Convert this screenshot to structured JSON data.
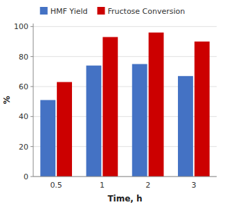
{
  "chart_data": {
    "type": "bar",
    "x_label": "Time, h",
    "y_label": "%",
    "categories": [
      "0.5",
      "1",
      "2",
      "3"
    ],
    "series": [
      {
        "name": "HMF Yield",
        "color": "#4472C4",
        "values": [
          51,
          74,
          75,
          67
        ]
      },
      {
        "name": "Fructose Conversion",
        "color": "#CC0000",
        "values": [
          63,
          93,
          96,
          90
        ]
      }
    ],
    "ylim": [
      0,
      102
    ],
    "yticks": [
      0,
      20,
      40,
      60,
      80,
      100
    ],
    "grid": true,
    "legend": "top"
  }
}
